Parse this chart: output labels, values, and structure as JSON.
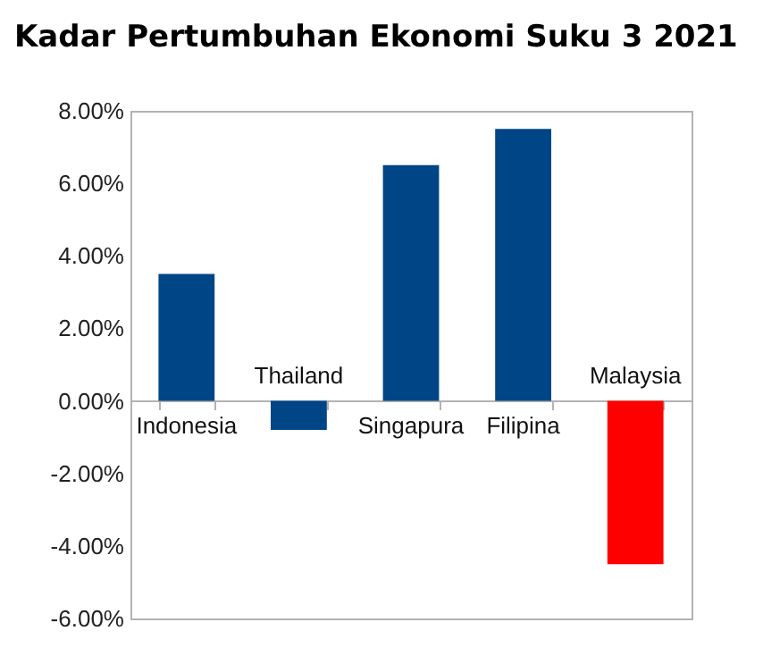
{
  "chart_data": {
    "type": "bar",
    "title": "Kadar Pertumbuhan Ekonomi Suku 3 2021",
    "categories": [
      "Indonesia",
      "Thailand",
      "Singapura",
      "Filipina",
      "Malaysia"
    ],
    "values": [
      3.5,
      -0.8,
      6.5,
      7.5,
      -4.5
    ],
    "colors": [
      "#004586",
      "#004586",
      "#004586",
      "#004586",
      "#ff0000"
    ],
    "ylim": [
      -6,
      8
    ],
    "yticks": [
      {
        "value": -6,
        "label": "-6.00%"
      },
      {
        "value": -4,
        "label": "-4.00%"
      },
      {
        "value": -2,
        "label": "-2.00%"
      },
      {
        "value": 0,
        "label": "0.00%"
      },
      {
        "value": 2,
        "label": "2.00%"
      },
      {
        "value": 4,
        "label": "4.00%"
      },
      {
        "value": 6,
        "label": "6.00%"
      },
      {
        "value": 8,
        "label": "8.00%"
      }
    ],
    "grid": false
  }
}
